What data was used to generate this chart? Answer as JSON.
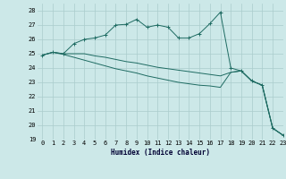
{
  "xlabel": "Humidex (Indice chaleur)",
  "xlim": [
    -0.5,
    23
  ],
  "ylim": [
    19,
    28.5
  ],
  "yticks": [
    19,
    20,
    21,
    22,
    23,
    24,
    25,
    26,
    27,
    28
  ],
  "xticks": [
    0,
    1,
    2,
    3,
    4,
    5,
    6,
    7,
    8,
    9,
    10,
    11,
    12,
    13,
    14,
    15,
    16,
    17,
    18,
    19,
    20,
    21,
    22,
    23
  ],
  "bg_color": "#cce8e8",
  "grid_color": "#aacccc",
  "line_color": "#1e6b62",
  "line1_x": [
    0,
    1,
    2,
    3,
    4,
    5,
    6,
    7,
    8,
    9,
    10,
    11,
    12,
    13,
    14,
    15,
    16,
    17,
    18,
    19,
    20,
    21,
    22,
    23
  ],
  "line1_y": [
    24.9,
    25.1,
    25.0,
    25.7,
    26.0,
    26.1,
    26.3,
    27.0,
    27.05,
    27.4,
    26.85,
    27.0,
    26.85,
    26.1,
    26.1,
    26.4,
    27.1,
    27.9,
    24.0,
    23.8,
    23.1,
    22.8,
    19.8,
    19.3
  ],
  "line2_x": [
    0,
    1,
    2,
    3,
    4,
    5,
    6,
    7,
    8,
    9,
    10,
    11,
    12,
    13,
    14,
    15,
    16,
    17,
    18,
    19,
    20,
    21,
    22,
    23
  ],
  "line2_y": [
    24.9,
    25.1,
    25.0,
    25.0,
    25.0,
    24.85,
    24.75,
    24.6,
    24.45,
    24.35,
    24.2,
    24.05,
    23.95,
    23.85,
    23.75,
    23.65,
    23.55,
    23.45,
    23.7,
    23.8,
    23.1,
    22.8,
    19.8,
    19.3
  ],
  "line3_x": [
    0,
    1,
    2,
    3,
    4,
    5,
    6,
    7,
    8,
    9,
    10,
    11,
    12,
    13,
    14,
    15,
    16,
    17,
    18,
    19,
    20,
    21,
    22,
    23
  ],
  "line3_y": [
    24.9,
    25.1,
    24.95,
    24.75,
    24.55,
    24.35,
    24.15,
    23.95,
    23.8,
    23.65,
    23.45,
    23.3,
    23.15,
    23.0,
    22.9,
    22.8,
    22.75,
    22.65,
    23.7,
    23.8,
    23.1,
    22.8,
    19.8,
    19.3
  ],
  "tick_fontsize": 5.0,
  "xlabel_fontsize": 5.5
}
